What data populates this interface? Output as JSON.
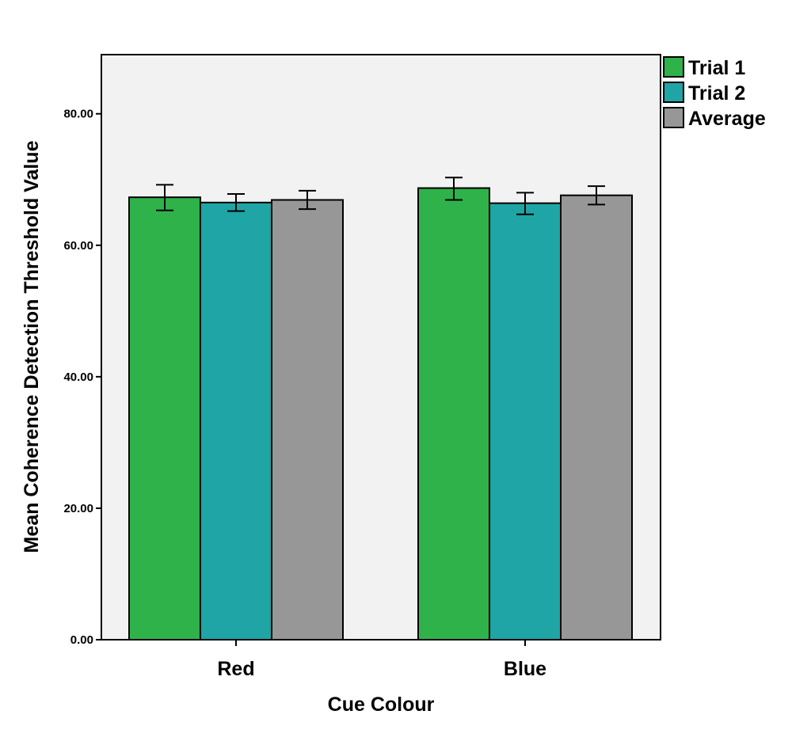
{
  "chart_data": {
    "type": "bar",
    "title": "",
    "xlabel": "Cue Colour",
    "ylabel": "Mean Coherence Detection Threshold Value",
    "categories": [
      "Red",
      "Blue"
    ],
    "ylim": [
      0,
      89
    ],
    "yticks": [
      "0.00",
      "20.00",
      "40.00",
      "60.00",
      "80.00"
    ],
    "grid": false,
    "legend_position": "right-top",
    "plot_background": "#f2f2f2",
    "series": [
      {
        "name": "Trial 1",
        "color": "#2fb24a",
        "values": [
          67.3,
          68.7
        ],
        "err_low": [
          65.3,
          66.9
        ],
        "err_high": [
          69.2,
          70.3
        ]
      },
      {
        "name": "Trial 2",
        "color": "#1fa5a5",
        "values": [
          66.5,
          66.4
        ],
        "err_low": [
          65.2,
          64.7
        ],
        "err_high": [
          67.8,
          68.0
        ]
      },
      {
        "name": "Average",
        "color": "#979797",
        "values": [
          66.9,
          67.6
        ],
        "err_low": [
          65.5,
          66.2
        ],
        "err_high": [
          68.3,
          69.0
        ]
      }
    ]
  }
}
